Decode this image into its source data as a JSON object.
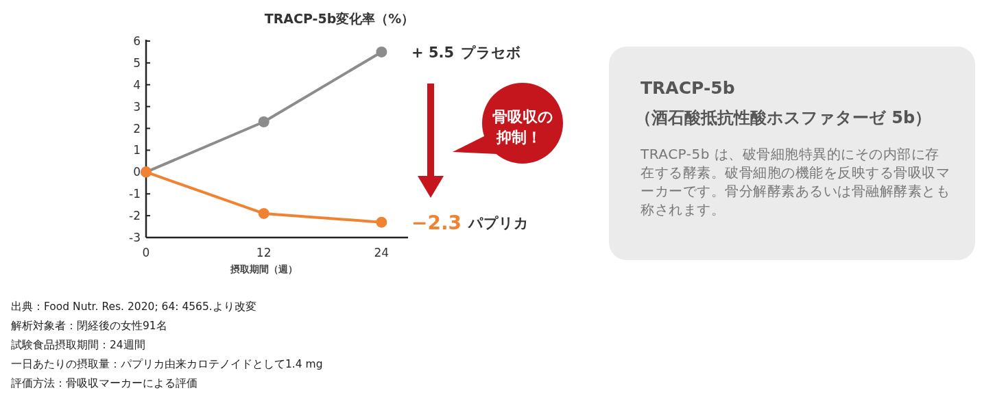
{
  "chart_data": [
    {
      "type": "line",
      "title": "TRACP-5b変化率（%）",
      "xlabel": "摂取期間（週）",
      "x": [
        0,
        12,
        24
      ],
      "xlim": [
        0,
        26.7
      ],
      "xticks": [
        0,
        12,
        24
      ],
      "ylim": [
        -3,
        6
      ],
      "yticks": [
        -3,
        -2,
        -1,
        0,
        1,
        2,
        3,
        4,
        5,
        6
      ],
      "marker": "circle",
      "grid": false,
      "series": [
        {
          "name": "プラセボ",
          "color": "#8c8c8c",
          "values": [
            0,
            2.3,
            5.5
          ],
          "value_labels": [
            null,
            null,
            "+ 5.5"
          ]
        },
        {
          "name": "パプリカ",
          "color": "#f08332",
          "values": [
            0,
            -1.9,
            -2.3
          ],
          "value_labels": [
            null,
            null,
            "−2.3"
          ]
        }
      ],
      "annotations": [
        "骨吸収の抑制！",
        "出典：Food Nutr. Res. 2020; 64: 4565.より改変",
        "解析対象者：閉経後の女性91名",
        "試験食品摂取期間：24週間",
        "一日あたりの摂取量：パプリカ由来カロテノイドとして1.4 mg",
        "評価方法：骨吸収マーカーによる評価"
      ]
    },
    {
      "type": "other",
      "title": "TRACP-5b",
      "subtitle": "（酒石酸抵抗性酸ホスファターゼ 5b）",
      "annotations": [
        "TRACP-5b は、破骨細胞特異的にその内部に存在する酵素。破骨細胞の機能を反映する骨吸収マーカーです。骨分解酵素あるいは骨融解酵素とも称されます。"
      ]
    }
  ]
}
